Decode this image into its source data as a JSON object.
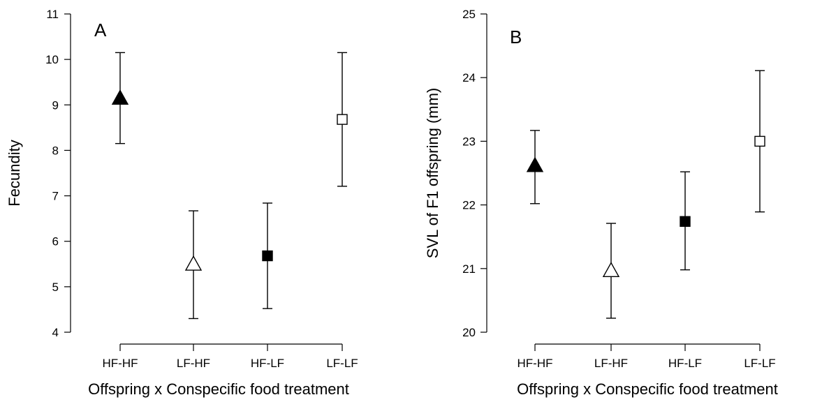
{
  "chart_data": [
    {
      "type": "scatter",
      "panel_label": "A",
      "xlabel": "Offspring x Conspecific food treatment",
      "ylabel": "Fecundity",
      "categories": [
        "HF-HF",
        "LF-HF",
        "HF-LF",
        "LF-LF"
      ],
      "ylim": [
        4,
        11
      ],
      "yticks": [
        4,
        5,
        6,
        7,
        8,
        9,
        10,
        11
      ],
      "grid": false,
      "points": [
        {
          "category": "HF-HF",
          "value": 9.15,
          "lower": 8.15,
          "upper": 10.15,
          "marker": "triangle",
          "fill": "#000000"
        },
        {
          "category": "LF-HF",
          "value": 5.5,
          "lower": 4.3,
          "upper": 6.67,
          "marker": "triangle",
          "fill": "#ffffff"
        },
        {
          "category": "HF-LF",
          "value": 5.68,
          "lower": 4.52,
          "upper": 6.84,
          "marker": "square",
          "fill": "#000000"
        },
        {
          "category": "LF-LF",
          "value": 8.68,
          "lower": 7.21,
          "upper": 10.15,
          "marker": "square",
          "fill": "#ffffff"
        }
      ]
    },
    {
      "type": "scatter",
      "panel_label": "B",
      "xlabel": "Offspring x Conspecific food treatment",
      "ylabel": "SVL of F1 offspring (mm)",
      "categories": [
        "HF-HF",
        "LF-HF",
        "HF-LF",
        "LF-LF"
      ],
      "ylim": [
        20,
        25
      ],
      "yticks": [
        20,
        21,
        22,
        23,
        24,
        25
      ],
      "grid": false,
      "points": [
        {
          "category": "HF-HF",
          "value": 22.62,
          "lower": 22.02,
          "upper": 23.17,
          "marker": "triangle",
          "fill": "#000000"
        },
        {
          "category": "LF-HF",
          "value": 20.97,
          "lower": 20.22,
          "upper": 21.71,
          "marker": "triangle",
          "fill": "#ffffff"
        },
        {
          "category": "HF-LF",
          "value": 21.74,
          "lower": 20.98,
          "upper": 22.52,
          "marker": "square",
          "fill": "#000000"
        },
        {
          "category": "LF-LF",
          "value": 23.0,
          "lower": 21.89,
          "upper": 24.11,
          "marker": "square",
          "fill": "#ffffff"
        }
      ]
    }
  ]
}
